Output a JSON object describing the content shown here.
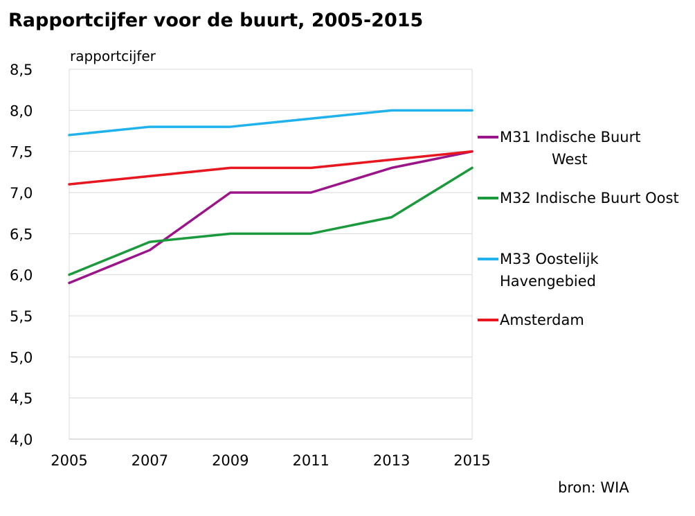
{
  "chart_data": {
    "type": "line",
    "title": "Rapportcijfer voor de buurt, 2005-2015",
    "ylabel": "rapportcijfer",
    "xlabel": "",
    "x": [
      "2005",
      "2007",
      "2009",
      "2011",
      "2013",
      "2015"
    ],
    "ylim": [
      4.0,
      8.5
    ],
    "yticks": [
      "4,0",
      "4,5",
      "5,0",
      "5,5",
      "6,0",
      "6,5",
      "7,0",
      "7,5",
      "8,0",
      "8,5"
    ],
    "grid": true,
    "legend_position": "right",
    "series": [
      {
        "name": "M31 Indische Buurt West",
        "label_lines": [
          "M31 Indische Buurt",
          "West"
        ],
        "color": "#9B1489",
        "values": [
          5.9,
          6.3,
          7.0,
          7.0,
          7.3,
          7.5
        ]
      },
      {
        "name": "M32 Indische Buurt Oost",
        "label_lines": [
          "M32 Indische Buurt Oost"
        ],
        "color": "#1A9A3C",
        "values": [
          6.0,
          6.4,
          6.5,
          6.5,
          6.7,
          7.3
        ]
      },
      {
        "name": "M33 Oostelijk Havengebied",
        "label_lines": [
          "M33 Oostelijk",
          "Havengebied"
        ],
        "color": "#1FB2EC",
        "values": [
          7.7,
          7.8,
          7.8,
          7.9,
          8.0,
          8.0
        ]
      },
      {
        "name": "Amsterdam",
        "label_lines": [
          "Amsterdam"
        ],
        "color": "#E8161E",
        "values": [
          7.1,
          7.2,
          7.3,
          7.3,
          7.4,
          7.5
        ]
      }
    ],
    "source": "bron: WIA"
  }
}
